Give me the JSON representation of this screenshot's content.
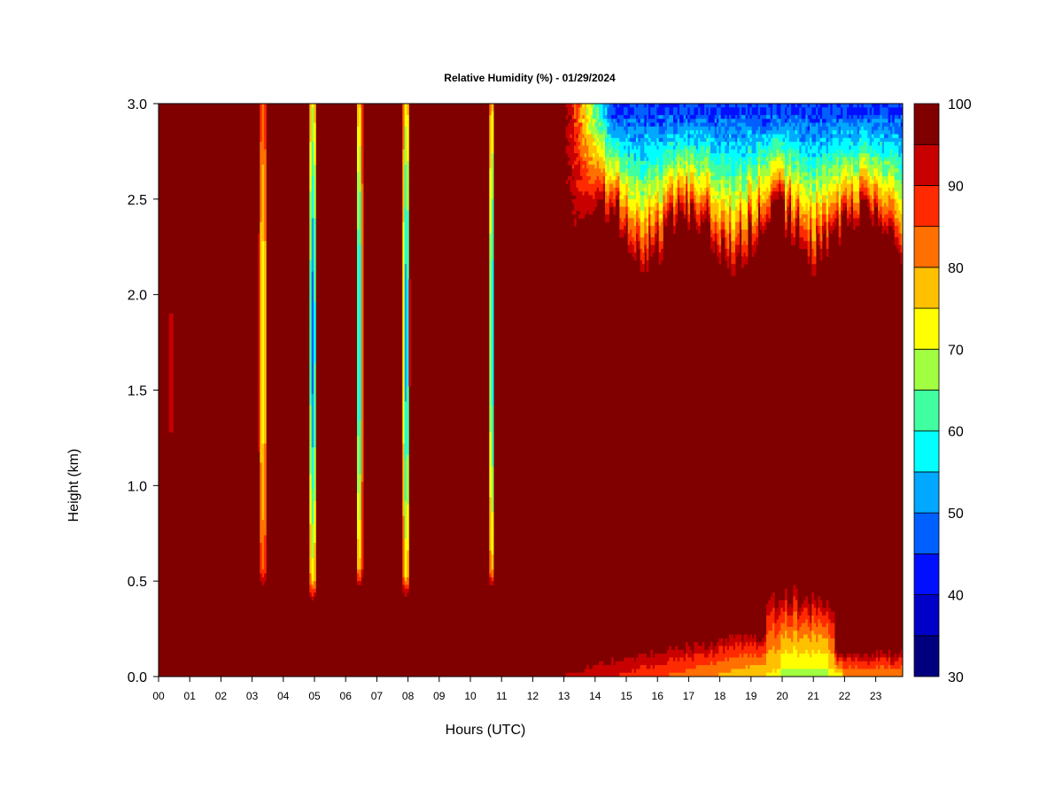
{
  "chart_data": {
    "type": "heatmap",
    "title": "Relative Humidity (%) - 01/29/2024",
    "xlabel": "Hours (UTC)",
    "ylabel": "Height (km)",
    "xlim": [
      0,
      23.9
    ],
    "ylim": [
      0.0,
      3.0
    ],
    "x_ticks": [
      "00",
      "01",
      "02",
      "03",
      "04",
      "05",
      "06",
      "07",
      "08",
      "09",
      "10",
      "11",
      "12",
      "13",
      "14",
      "15",
      "16",
      "17",
      "18",
      "19",
      "20",
      "21",
      "22",
      "23"
    ],
    "y_ticks": [
      "0.0",
      "0.5",
      "1.0",
      "1.5",
      "2.0",
      "2.5",
      "3.0"
    ],
    "colorbar": {
      "levels": [
        30,
        35,
        40,
        45,
        50,
        55,
        60,
        65,
        70,
        75,
        80,
        85,
        90,
        95,
        100
      ],
      "tick_labels": [
        "30",
        "40",
        "50",
        "60",
        "70",
        "80",
        "90",
        "100"
      ],
      "colors": [
        "#00007f",
        "#0000c8",
        "#0010ff",
        "#0060ff",
        "#00a8ff",
        "#00ffff",
        "#40ffa0",
        "#a0ff40",
        "#ffff00",
        "#ffc000",
        "#ff7000",
        "#ff2a00",
        "#c80000",
        "#800000"
      ]
    },
    "background_value": 100,
    "columns": [
      {
        "x": 0.4,
        "width": 0.12,
        "y_range": [
          1.2,
          1.9
        ],
        "min_value": 90,
        "min_at": 1.7
      },
      {
        "x": 3.35,
        "width": 0.28,
        "y_range": [
          0.45,
          3.0
        ],
        "min_value": 72,
        "min_at": 1.75
      },
      {
        "x": 4.95,
        "width": 0.24,
        "y_range": [
          0.38,
          3.0
        ],
        "min_value": 48,
        "min_at": 1.8
      },
      {
        "x": 6.45,
        "width": 0.22,
        "y_range": [
          0.45,
          3.0
        ],
        "min_value": 55,
        "min_at": 1.8
      },
      {
        "x": 7.95,
        "width": 0.24,
        "y_range": [
          0.4,
          3.0
        ],
        "min_value": 52,
        "min_at": 1.8
      },
      {
        "x": 10.7,
        "width": 0.16,
        "y_range": [
          0.45,
          3.0
        ],
        "min_value": 55,
        "min_at": 1.8
      }
    ],
    "upper_dry_region": {
      "x_range": [
        13.0,
        23.9
      ],
      "base_km": 2.3,
      "min_value": 45,
      "min_at_km": 2.95
    },
    "surface_dry_layer": {
      "x_range": [
        0.0,
        23.9
      ],
      "max_top_km": 0.75,
      "min_value": 68,
      "min_at_hour": 20.5
    }
  }
}
